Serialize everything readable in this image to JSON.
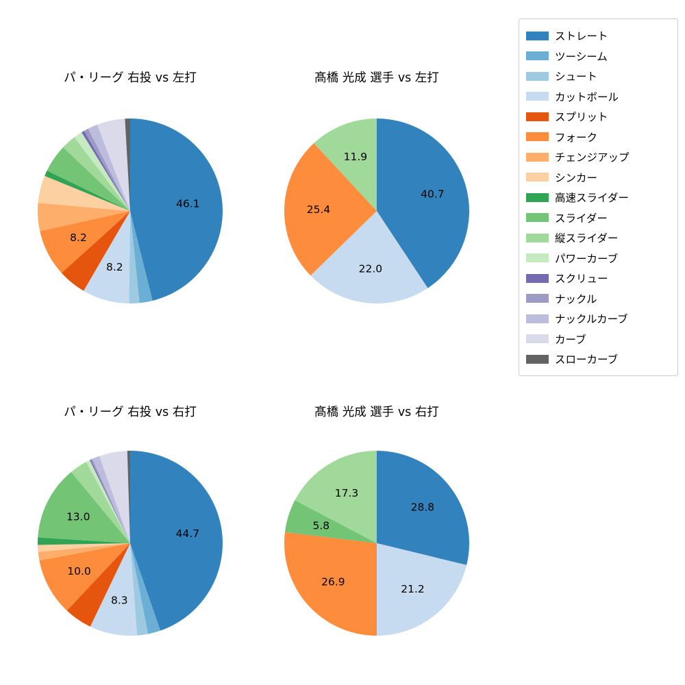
{
  "page": {
    "background_color": "#ffffff"
  },
  "legend": {
    "position": "upper right",
    "border_color": "#cccccc"
  },
  "chart_data": {
    "type": "pie",
    "unit": "percent",
    "start_angle": "top",
    "direction": "clockwise",
    "percent_label_threshold": 5,
    "percent_label_note": "percentage text shown inside slice only when value > 5; values without visible labels are estimated from wedge angles",
    "categories": [
      "ストレート",
      "ツーシーム",
      "シュート",
      "カットボール",
      "スプリット",
      "フォーク",
      "チェンジアップ",
      "シンカー",
      "高速スライダー",
      "スライダー",
      "縦スライダー",
      "パワーカーブ",
      "スクリュー",
      "ナックル",
      "ナックルカーブ",
      "カーブ",
      "スローカーブ"
    ],
    "palette": [
      "#3182bd",
      "#6baed6",
      "#9ecae1",
      "#c6dbef",
      "#e6550d",
      "#fd8d3c",
      "#fdae6b",
      "#fdd0a2",
      "#31a354",
      "#74c476",
      "#a1d99b",
      "#c7e9c0",
      "#756bb1",
      "#9e9ac8",
      "#bcbddc",
      "#dadaeb",
      "#636363"
    ],
    "charts": [
      {
        "title": "パ・リーグ 右投 vs 左打",
        "values": [
          46.1,
          2.3,
          1.8,
          8.2,
          4.9,
          8.2,
          4.9,
          4.8,
          1.0,
          4.9,
          2.6,
          1.5,
          0.5,
          0.8,
          1.7,
          4.9,
          0.9
        ],
        "shown_labels": {
          "ストレート": "46.1",
          "カットボール": "8.2",
          "フォーク": "8.2"
        }
      },
      {
        "title": "髙橋 光成 選手 vs 左打",
        "values": [
          40.7,
          0,
          0,
          22.0,
          0,
          25.4,
          0,
          0,
          0,
          0,
          11.9,
          0,
          0,
          0,
          0,
          0,
          0
        ],
        "shown_labels": {
          "ストレート": "40.7",
          "カットボール": "22.0",
          "フォーク": "25.4",
          "縦スライダー": "11.9"
        }
      },
      {
        "title": "パ・リーグ 右投 vs 右打",
        "values": [
          44.7,
          2.2,
          1.9,
          8.3,
          4.9,
          10.0,
          1.5,
          1.2,
          1.3,
          13.0,
          3.1,
          0.7,
          0.2,
          0.3,
          1.3,
          4.9,
          0.5
        ],
        "shown_labels": {
          "ストレート": "44.7",
          "カットボール": "8.3",
          "フォーク": "10.0",
          "スライダー": "13.0"
        }
      },
      {
        "title": "髙橋 光成 選手 vs 右打",
        "values": [
          28.8,
          0,
          0,
          21.2,
          0,
          26.9,
          0,
          0,
          0,
          5.8,
          17.3,
          0,
          0,
          0,
          0,
          0,
          0
        ],
        "shown_labels": {
          "ストレート": "28.8",
          "カットボール": "21.2",
          "フォーク": "26.9",
          "スライダー": "5.8",
          "縦スライダー": "17.3"
        }
      }
    ]
  }
}
